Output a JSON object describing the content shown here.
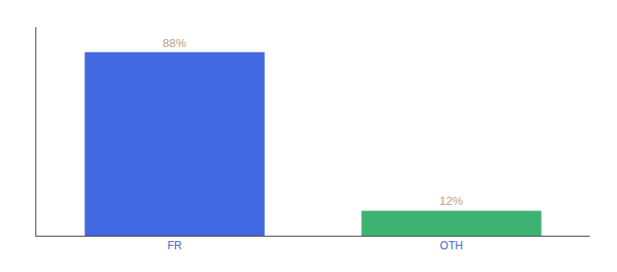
{
  "chart_data": {
    "type": "bar",
    "categories": [
      "FR",
      "OTH"
    ],
    "values": [
      88,
      12
    ],
    "value_labels": [
      "88%",
      "12%"
    ],
    "colors": [
      "#4169E1",
      "#3CB371"
    ],
    "ylim": [
      0,
      100
    ],
    "grid": false,
    "data_labels": true,
    "tick_labels": "x"
  }
}
